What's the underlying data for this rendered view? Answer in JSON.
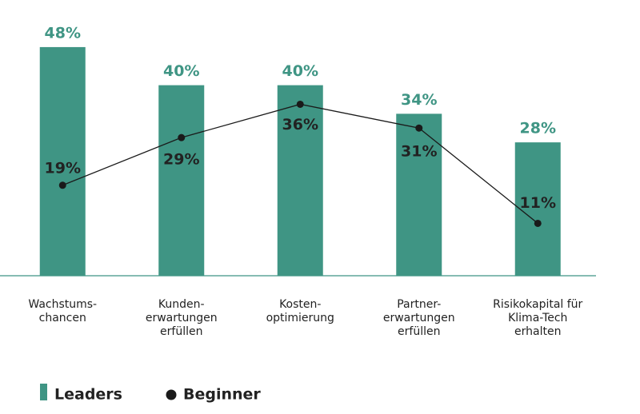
{
  "chart_data": {
    "type": "bar_line",
    "categories": [
      [
        "Wachstums-",
        "chancen"
      ],
      [
        "Kunden-",
        "erwartungen",
        "erfüllen"
      ],
      [
        "Kosten-",
        "optimierung"
      ],
      [
        "Partner-",
        "erwartungen",
        "erfüllen"
      ],
      [
        "Risikokapital für",
        "Klima-Tech",
        "erhalten"
      ]
    ],
    "series": [
      {
        "name": "Leaders",
        "type": "bar",
        "color": "#3f9584",
        "values": [
          48,
          40,
          40,
          34,
          28
        ],
        "value_labels": [
          "48%",
          "40%",
          "40%",
          "34%",
          "28%"
        ]
      },
      {
        "name": "Beginner",
        "type": "line",
        "color": "#1a1a1a",
        "values": [
          19,
          29,
          36,
          31,
          11
        ],
        "value_labels": [
          "19%",
          "29%",
          "36%",
          "31%",
          "11%"
        ]
      }
    ],
    "ylim": [
      0,
      50
    ],
    "legend": "bottom-left"
  }
}
